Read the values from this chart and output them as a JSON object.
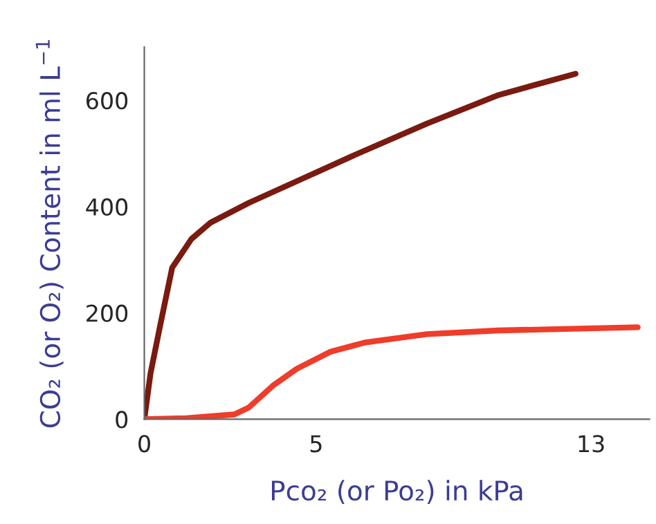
{
  "chart_data": {
    "type": "line",
    "xlabel": "Pco₂ (or Po₂) in kPa",
    "ylabel": "CO₂ (or O₂) Content in ml L$^{−1}$",
    "xlim": [
      0,
      14.7
    ],
    "xticks": [
      0,
      5,
      13
    ],
    "ylim": [
      0,
      700
    ],
    "yticks": [
      0,
      200,
      400,
      600
    ],
    "grid": false,
    "series": [
      {
        "color": "#7a1a10",
        "x": [
          0,
          0.18,
          0.46,
          0.81,
          1.37,
          1.93,
          3.04,
          4.72,
          6.12,
          8.22,
          10.31,
          12.55
        ],
        "values": [
          0,
          86,
          176,
          285,
          339,
          370,
          407,
          456,
          497,
          556,
          610,
          650
        ]
      },
      {
        "color": "#f03c2a",
        "x": [
          0,
          1.23,
          2.62,
          3.04,
          3.74,
          4.44,
          5.42,
          6.4,
          8.22,
          10.31,
          14.36
        ],
        "values": [
          0,
          2,
          9,
          22,
          63,
          95,
          127,
          144,
          160,
          167,
          173
        ]
      }
    ]
  }
}
